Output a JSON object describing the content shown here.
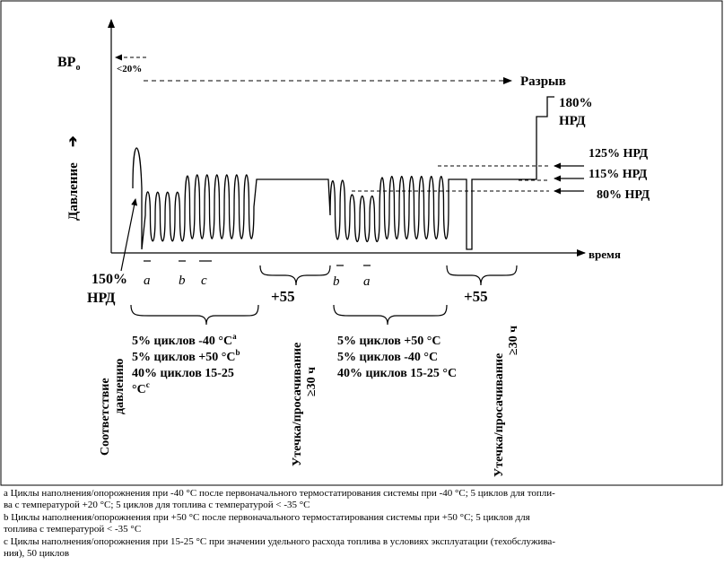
{
  "axes": {
    "y_label": "Давление",
    "y_arrow": "➔",
    "x_label": "время",
    "y_top_label": "BP",
    "y_top_sub": "o"
  },
  "markers": {
    "lt20": "<20%",
    "rupture": "Разрыв",
    "p180_a": "180%",
    "p180_b": "НРД",
    "p125": "125% НРД",
    "p115": "115% НРД",
    "p80": "80% НРД",
    "p150_a": "150%",
    "p150_b": "НРД"
  },
  "cycle_letters": {
    "first": [
      "a",
      "b",
      "c"
    ],
    "second": [
      "b",
      "a"
    ]
  },
  "plus55": "+55",
  "groups": {
    "left": {
      "line1": "5% циклов  -40 °C",
      "line1_sup": "a",
      "line2": "5% циклов  +50 °C",
      "line2_sup": "b",
      "line3": "40% циклов 15-25",
      "line4": "°C",
      "line4_sup": "c"
    },
    "right": {
      "line1": "5% циклов  +50 °C",
      "line2": "5% циклов  -40 °C",
      "line3": "40% циклов 15-25 °C"
    }
  },
  "vertical_labels": {
    "compliance_1": "Соответствие",
    "compliance_2": "давлению",
    "leak1_a": "Утечка/просачивание",
    "leak1_b": "≥30 ч",
    "leak2_a": "Утечка/просачивание",
    "leak2_b": "≥30 ч"
  },
  "footnotes": [
    "a  Циклы наполнения/опорожнения при -40 °C после первоначального термостатирования системы при -40 °C; 5 циклов для топли-",
    "ва с температурой +20 °C; 5 циклов для топлива с температурой < -35 °C",
    "b  Циклы наполнения/опорожнения при +50 °C после первоначального термостатирования системы при +50 °C; 5 циклов для",
    "топлива с температурой < -35 °C",
    "c  Циклы наполнения/опорожнения при 15-25 °C при значении удельного расхода топлива в условиях эксплуатации (техобслужива-",
    "ния), 50 циклов"
  ]
}
